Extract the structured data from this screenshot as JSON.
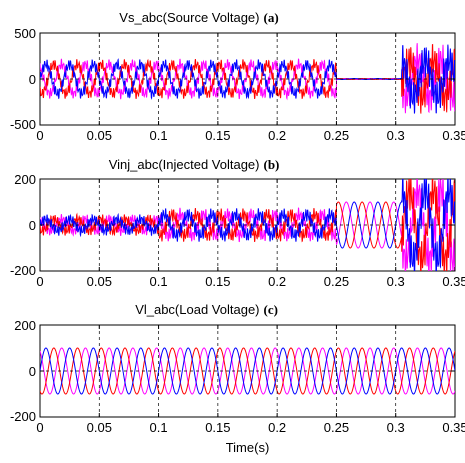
{
  "colors": {
    "phase_a": "#0000ff",
    "phase_b": "#ff0000",
    "phase_c": "#ff00ff",
    "axes": "#000000"
  },
  "chart_data": [
    {
      "type": "line",
      "title": "Vs_abc(Source Voltage)",
      "panel_label": "(a)",
      "xlim": [
        0,
        0.35
      ],
      "ylim": [
        -500,
        500
      ],
      "x_ticks": [
        "0",
        "0.05",
        "0.1",
        "0.15",
        "0.2",
        "0.25",
        "0.3",
        "0.35"
      ],
      "y_ticks": [
        "-500",
        "0",
        "500"
      ],
      "grid": true,
      "xlabel": "",
      "ylabel": "",
      "series": [
        {
          "phase": "a",
          "color": "#0000ff"
        },
        {
          "phase": "b",
          "color": "#ff0000"
        },
        {
          "phase": "c",
          "color": "#ff00ff"
        }
      ],
      "segments": [
        {
          "x": [
            0,
            0.25
          ],
          "amplitude": 160,
          "ripple": 40
        },
        {
          "x": [
            0.25,
            0.305
          ],
          "amplitude": 5,
          "ripple": 0
        },
        {
          "x": [
            0.305,
            0.35
          ],
          "amplitude": 200,
          "ripple": 130
        }
      ]
    },
    {
      "type": "line",
      "title": "Vinj_abc(Injected Voltage)",
      "panel_label": "(b)",
      "xlim": [
        0,
        0.35
      ],
      "ylim": [
        -200,
        200
      ],
      "x_ticks": [
        "0",
        "0.05",
        "0.1",
        "0.15",
        "0.2",
        "0.25",
        "0.3",
        "0.35"
      ],
      "y_ticks": [
        "-200",
        "0",
        "200"
      ],
      "grid": true,
      "xlabel": "",
      "ylabel": "",
      "series": [
        {
          "phase": "a",
          "color": "#0000ff"
        },
        {
          "phase": "b",
          "color": "#ff0000"
        },
        {
          "phase": "c",
          "color": "#ff00ff"
        }
      ],
      "segments": [
        {
          "x": [
            0,
            0.1
          ],
          "amplitude": 25,
          "ripple": 15
        },
        {
          "x": [
            0.1,
            0.25
          ],
          "amplitude": 45,
          "ripple": 20
        },
        {
          "x": [
            0.25,
            0.305
          ],
          "amplitude": 100,
          "ripple": 0
        },
        {
          "x": [
            0.305,
            0.35
          ],
          "amplitude": 150,
          "ripple": 60
        }
      ]
    },
    {
      "type": "line",
      "title": "Vl_abc(Load Voltage)",
      "panel_label": "(c)",
      "xlim": [
        0,
        0.35
      ],
      "ylim": [
        -200,
        200
      ],
      "x_ticks": [
        "0",
        "0.05",
        "0.1",
        "0.15",
        "0.2",
        "0.25",
        "0.3",
        "0.35"
      ],
      "y_ticks": [
        "-200",
        "0",
        "200"
      ],
      "grid": true,
      "xlabel": "Time(s)",
      "ylabel": "",
      "series": [
        {
          "phase": "a",
          "color": "#0000ff"
        },
        {
          "phase": "b",
          "color": "#ff0000"
        },
        {
          "phase": "c",
          "color": "#ff00ff"
        }
      ],
      "segments": [
        {
          "x": [
            0,
            0.35
          ],
          "amplitude": 100,
          "ripple": 0
        }
      ]
    }
  ]
}
